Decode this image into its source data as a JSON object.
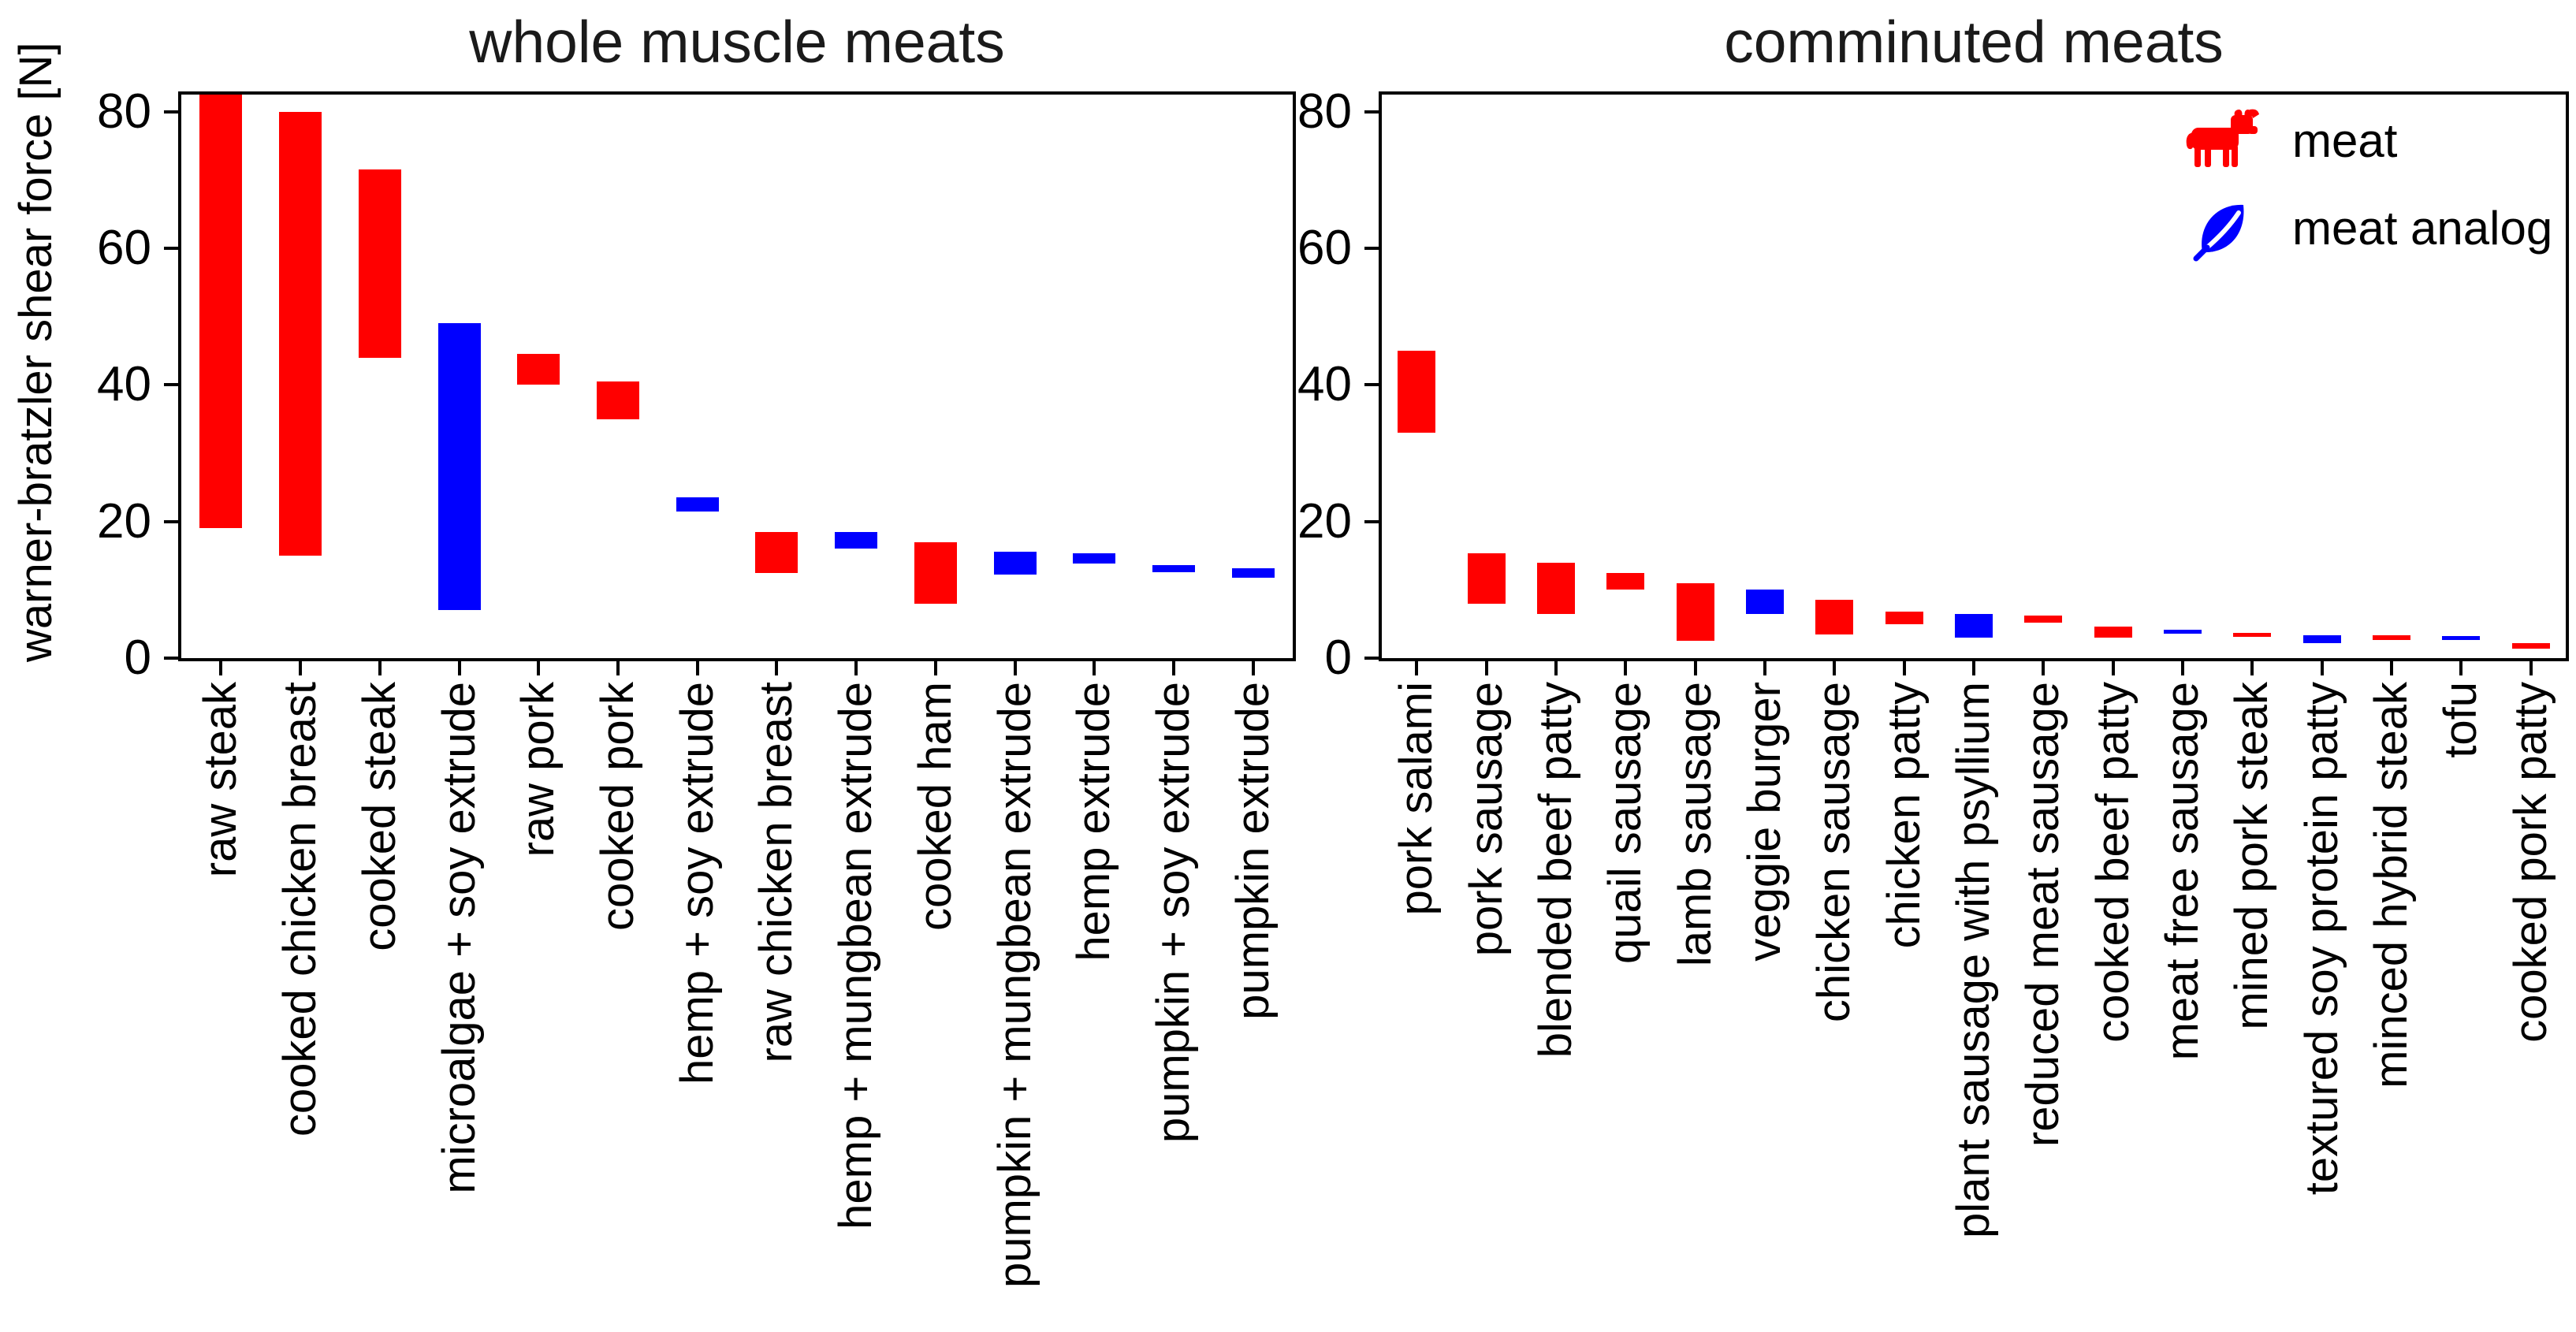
{
  "figure": {
    "ylabel": "warner-bratzler shear force [N]"
  },
  "legend": {
    "items": [
      {
        "icon": "cow-icon",
        "label": "meat",
        "color": "#ff0000"
      },
      {
        "icon": "leaf-icon",
        "label": "meat analog",
        "color": "#0000ff"
      }
    ]
  },
  "colors": {
    "meat": "#ff0000",
    "analog": "#0000ff"
  },
  "chart_data": [
    {
      "type": "bar",
      "title": "whole muscle meats",
      "ylabel": "warner-bratzler shear force [N]",
      "ylim": [
        0,
        82.5
      ],
      "yticks": [
        0,
        20,
        40,
        60,
        80
      ],
      "grid": false,
      "bar_style": "floating range bars (min to max)",
      "categories": [
        "raw steak",
        "cooked chicken breast",
        "cooked steak",
        "microalgae + soy extrude",
        "raw pork",
        "cooked pork",
        "hemp + soy extrude",
        "raw chicken breast",
        "hemp + mungbean extrude",
        "cooked ham",
        "pumpkin + mungbean extrude",
        "hemp extrude",
        "pumpkin + soy extrude",
        "pumpkin extrude"
      ],
      "bars": [
        {
          "label": "raw steak",
          "group": "meat",
          "min": 19.0,
          "max": 82.5
        },
        {
          "label": "cooked chicken breast",
          "group": "meat",
          "min": 15.0,
          "max": 80.0
        },
        {
          "label": "cooked steak",
          "group": "meat",
          "min": 44.0,
          "max": 71.5
        },
        {
          "label": "microalgae + soy extrude",
          "group": "analog",
          "min": 7.0,
          "max": 49.0
        },
        {
          "label": "raw pork",
          "group": "meat",
          "min": 40.0,
          "max": 44.5
        },
        {
          "label": "cooked pork",
          "group": "meat",
          "min": 35.0,
          "max": 40.5
        },
        {
          "label": "hemp + soy extrude",
          "group": "analog",
          "min": 21.5,
          "max": 23.5
        },
        {
          "label": "raw chicken breast",
          "group": "meat",
          "min": 12.5,
          "max": 18.5
        },
        {
          "label": "hemp + mungbean extrude",
          "group": "analog",
          "min": 16.0,
          "max": 18.5
        },
        {
          "label": "cooked ham",
          "group": "meat",
          "min": 8.0,
          "max": 17.0
        },
        {
          "label": "pumpkin + mungbean extrude",
          "group": "analog",
          "min": 12.2,
          "max": 15.6
        },
        {
          "label": "hemp extrude",
          "group": "analog",
          "min": 13.8,
          "max": 15.3
        },
        {
          "label": "pumpkin + soy extrude",
          "group": "analog",
          "min": 12.6,
          "max": 13.6
        },
        {
          "label": "pumpkin extrude",
          "group": "analog",
          "min": 11.8,
          "max": 13.2
        }
      ]
    },
    {
      "type": "bar",
      "title": "comminuted meats",
      "ylabel": "warner-bratzler shear force [N]",
      "ylim": [
        0,
        82.5
      ],
      "yticks": [
        0,
        20,
        40,
        60,
        80
      ],
      "grid": false,
      "bar_style": "floating range bars (min to max)",
      "categories": [
        "pork salami",
        "pork sausage",
        "blended beef patty",
        "quail sausage",
        "lamb sausage",
        "veggie burger",
        "chicken sausage",
        "chicken patty",
        "plant sausage with psyllium",
        "reduced meat sausage",
        "cooked beef patty",
        "meat free sausage",
        "mined pork steak",
        "textured soy protein patty",
        "minced hybrid steak",
        "tofu",
        "cooked pork patty"
      ],
      "bars": [
        {
          "label": "pork salami",
          "group": "meat",
          "min": 33.0,
          "max": 45.0
        },
        {
          "label": "pork sausage",
          "group": "meat",
          "min": 8.0,
          "max": 15.3
        },
        {
          "label": "blended beef patty",
          "group": "meat",
          "min": 6.5,
          "max": 14.0
        },
        {
          "label": "quail sausage",
          "group": "meat",
          "min": 10.0,
          "max": 12.5
        },
        {
          "label": "lamb sausage",
          "group": "meat",
          "min": 2.5,
          "max": 11.0
        },
        {
          "label": "veggie burger",
          "group": "analog",
          "min": 6.5,
          "max": 10.0
        },
        {
          "label": "chicken sausage",
          "group": "meat",
          "min": 3.5,
          "max": 8.5
        },
        {
          "label": "chicken patty",
          "group": "meat",
          "min": 5.0,
          "max": 6.8
        },
        {
          "label": "plant sausage with psyllium",
          "group": "analog",
          "min": 3.0,
          "max": 6.5
        },
        {
          "label": "reduced meat sausage",
          "group": "meat",
          "min": 5.2,
          "max": 6.2
        },
        {
          "label": "cooked beef patty",
          "group": "meat",
          "min": 3.0,
          "max": 4.6
        },
        {
          "label": "meat free sausage",
          "group": "analog",
          "min": 3.6,
          "max": 4.2
        },
        {
          "label": "mined pork steak",
          "group": "meat",
          "min": 3.1,
          "max": 3.7
        },
        {
          "label": "textured soy protein patty",
          "group": "analog",
          "min": 2.2,
          "max": 3.4
        },
        {
          "label": "minced hybrid steak",
          "group": "meat",
          "min": 2.6,
          "max": 3.3
        },
        {
          "label": "tofu",
          "group": "analog",
          "min": 2.7,
          "max": 3.2
        },
        {
          "label": "cooked pork patty",
          "group": "meat",
          "min": 1.4,
          "max": 2.2
        }
      ]
    }
  ]
}
